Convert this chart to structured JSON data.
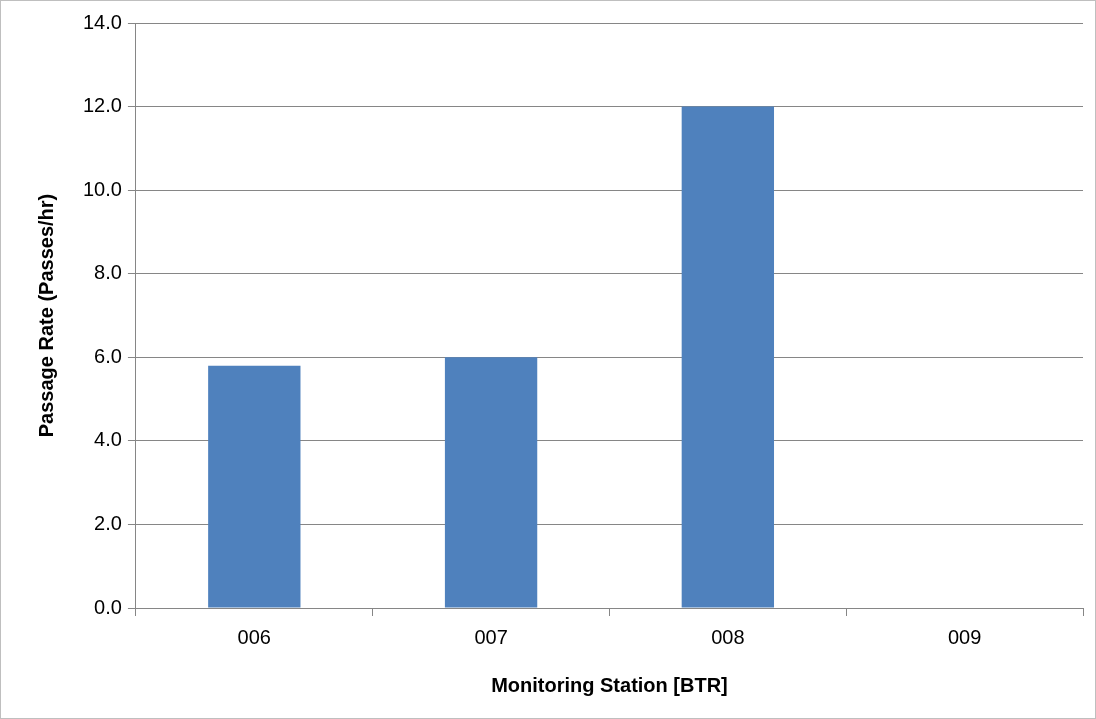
{
  "chart_data": {
    "type": "bar",
    "xlabel": "Monitoring Station [BTR]",
    "ylabel": "Passage Rate (Passes/hr)",
    "categories": [
      "006",
      "007",
      "008",
      "009"
    ],
    "values": [
      5.8,
      6.0,
      12.0,
      0
    ],
    "color": "#4f81bd",
    "ylim": [
      0,
      14
    ],
    "yticks": [
      {
        "value": 0,
        "label": "0.0"
      },
      {
        "value": 2,
        "label": "2.0"
      },
      {
        "value": 4,
        "label": "4.0"
      },
      {
        "value": 6,
        "label": "6.0"
      },
      {
        "value": 8,
        "label": "8.0"
      },
      {
        "value": 10,
        "label": "10.0"
      },
      {
        "value": 12,
        "label": "12.0"
      },
      {
        "value": 14,
        "label": "14.0"
      }
    ],
    "grid": "y",
    "legend": false
  }
}
